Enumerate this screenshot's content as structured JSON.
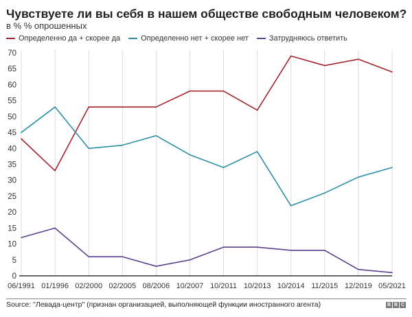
{
  "chart_data": {
    "type": "line",
    "title": "Чувствуете ли вы себя в нашем обществе свободным человеком?",
    "subtitle": "в % % опрошенных",
    "categories": [
      "06/1991",
      "01/1996",
      "02/2000",
      "02/2005",
      "08/2006",
      "10/2007",
      "10/2011",
      "10/2013",
      "10/2014",
      "11/2015",
      "12/2019",
      "05/2021"
    ],
    "series": [
      {
        "name": "Определенно да + скорее да",
        "color": "#a3232d",
        "values": [
          43,
          33,
          53,
          53,
          53,
          58,
          58,
          52,
          69,
          66,
          68,
          64
        ]
      },
      {
        "name": "Определенно нет + скорее нет",
        "color": "#2b8fa6",
        "values": [
          45,
          53,
          40,
          41,
          44,
          38,
          34,
          39,
          22,
          26,
          31,
          34
        ]
      },
      {
        "name": "Затрудняюсь ответить",
        "color": "#5b3f8c",
        "values": [
          12,
          15,
          6,
          6,
          3,
          5,
          9,
          9,
          8,
          8,
          2,
          1
        ]
      }
    ],
    "ylim": [
      0,
      70
    ],
    "yticks": [
      0,
      5,
      10,
      15,
      20,
      25,
      30,
      35,
      40,
      45,
      50,
      55,
      60,
      65,
      70
    ],
    "grid": "vertical",
    "legend": "top-left"
  },
  "footer": {
    "source": "Source: \"Левада-центр\" (признан организацией, выполняющей функции иностранного агента)",
    "logo": "BBC"
  }
}
